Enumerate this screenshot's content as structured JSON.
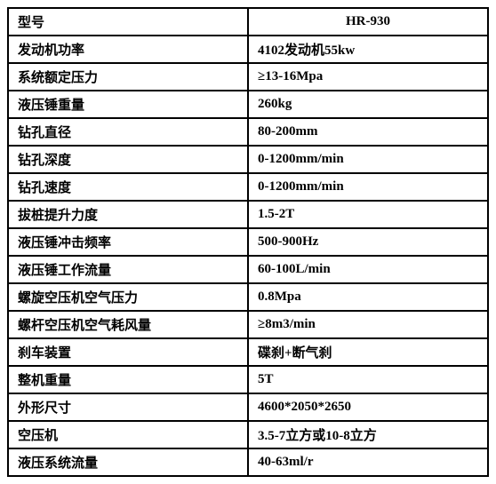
{
  "table": {
    "rows": [
      {
        "label": "型号",
        "value": "HR-930",
        "center_value": true
      },
      {
        "label": "发动机功率",
        "value": "4102发动机55kw"
      },
      {
        "label": "系统额定压力",
        "value": "≥13-16Mpa"
      },
      {
        "label": "液压锤重量",
        "value": "260kg"
      },
      {
        "label": "钻孔直径",
        "value": "80-200mm"
      },
      {
        "label": "钻孔深度",
        "value": "0-1200mm/min"
      },
      {
        "label": "钻孔速度",
        "value": "0-1200mm/min"
      },
      {
        "label": "拔桩提升力度",
        "value": "1.5-2T"
      },
      {
        "label": "液压锤冲击频率",
        "value": "500-900Hz"
      },
      {
        "label": "液压锤工作流量",
        "value": "60-100L/min"
      },
      {
        "label": "螺旋空压机空气压力",
        "value": "0.8Mpa"
      },
      {
        "label": "螺杆空压机空气耗风量",
        "value": "≥8m3/min"
      },
      {
        "label": "刹车装置",
        "value": "碟刹+断气刹"
      },
      {
        "label": "整机重量",
        "value": "5T"
      },
      {
        "label": "外形尺寸",
        "value": "4600*2050*2650"
      },
      {
        "label": "空压机",
        "value": "3.5-7立方或10-8立方"
      },
      {
        "label": "液压系统流量",
        "value": "40-63ml/r"
      }
    ]
  }
}
